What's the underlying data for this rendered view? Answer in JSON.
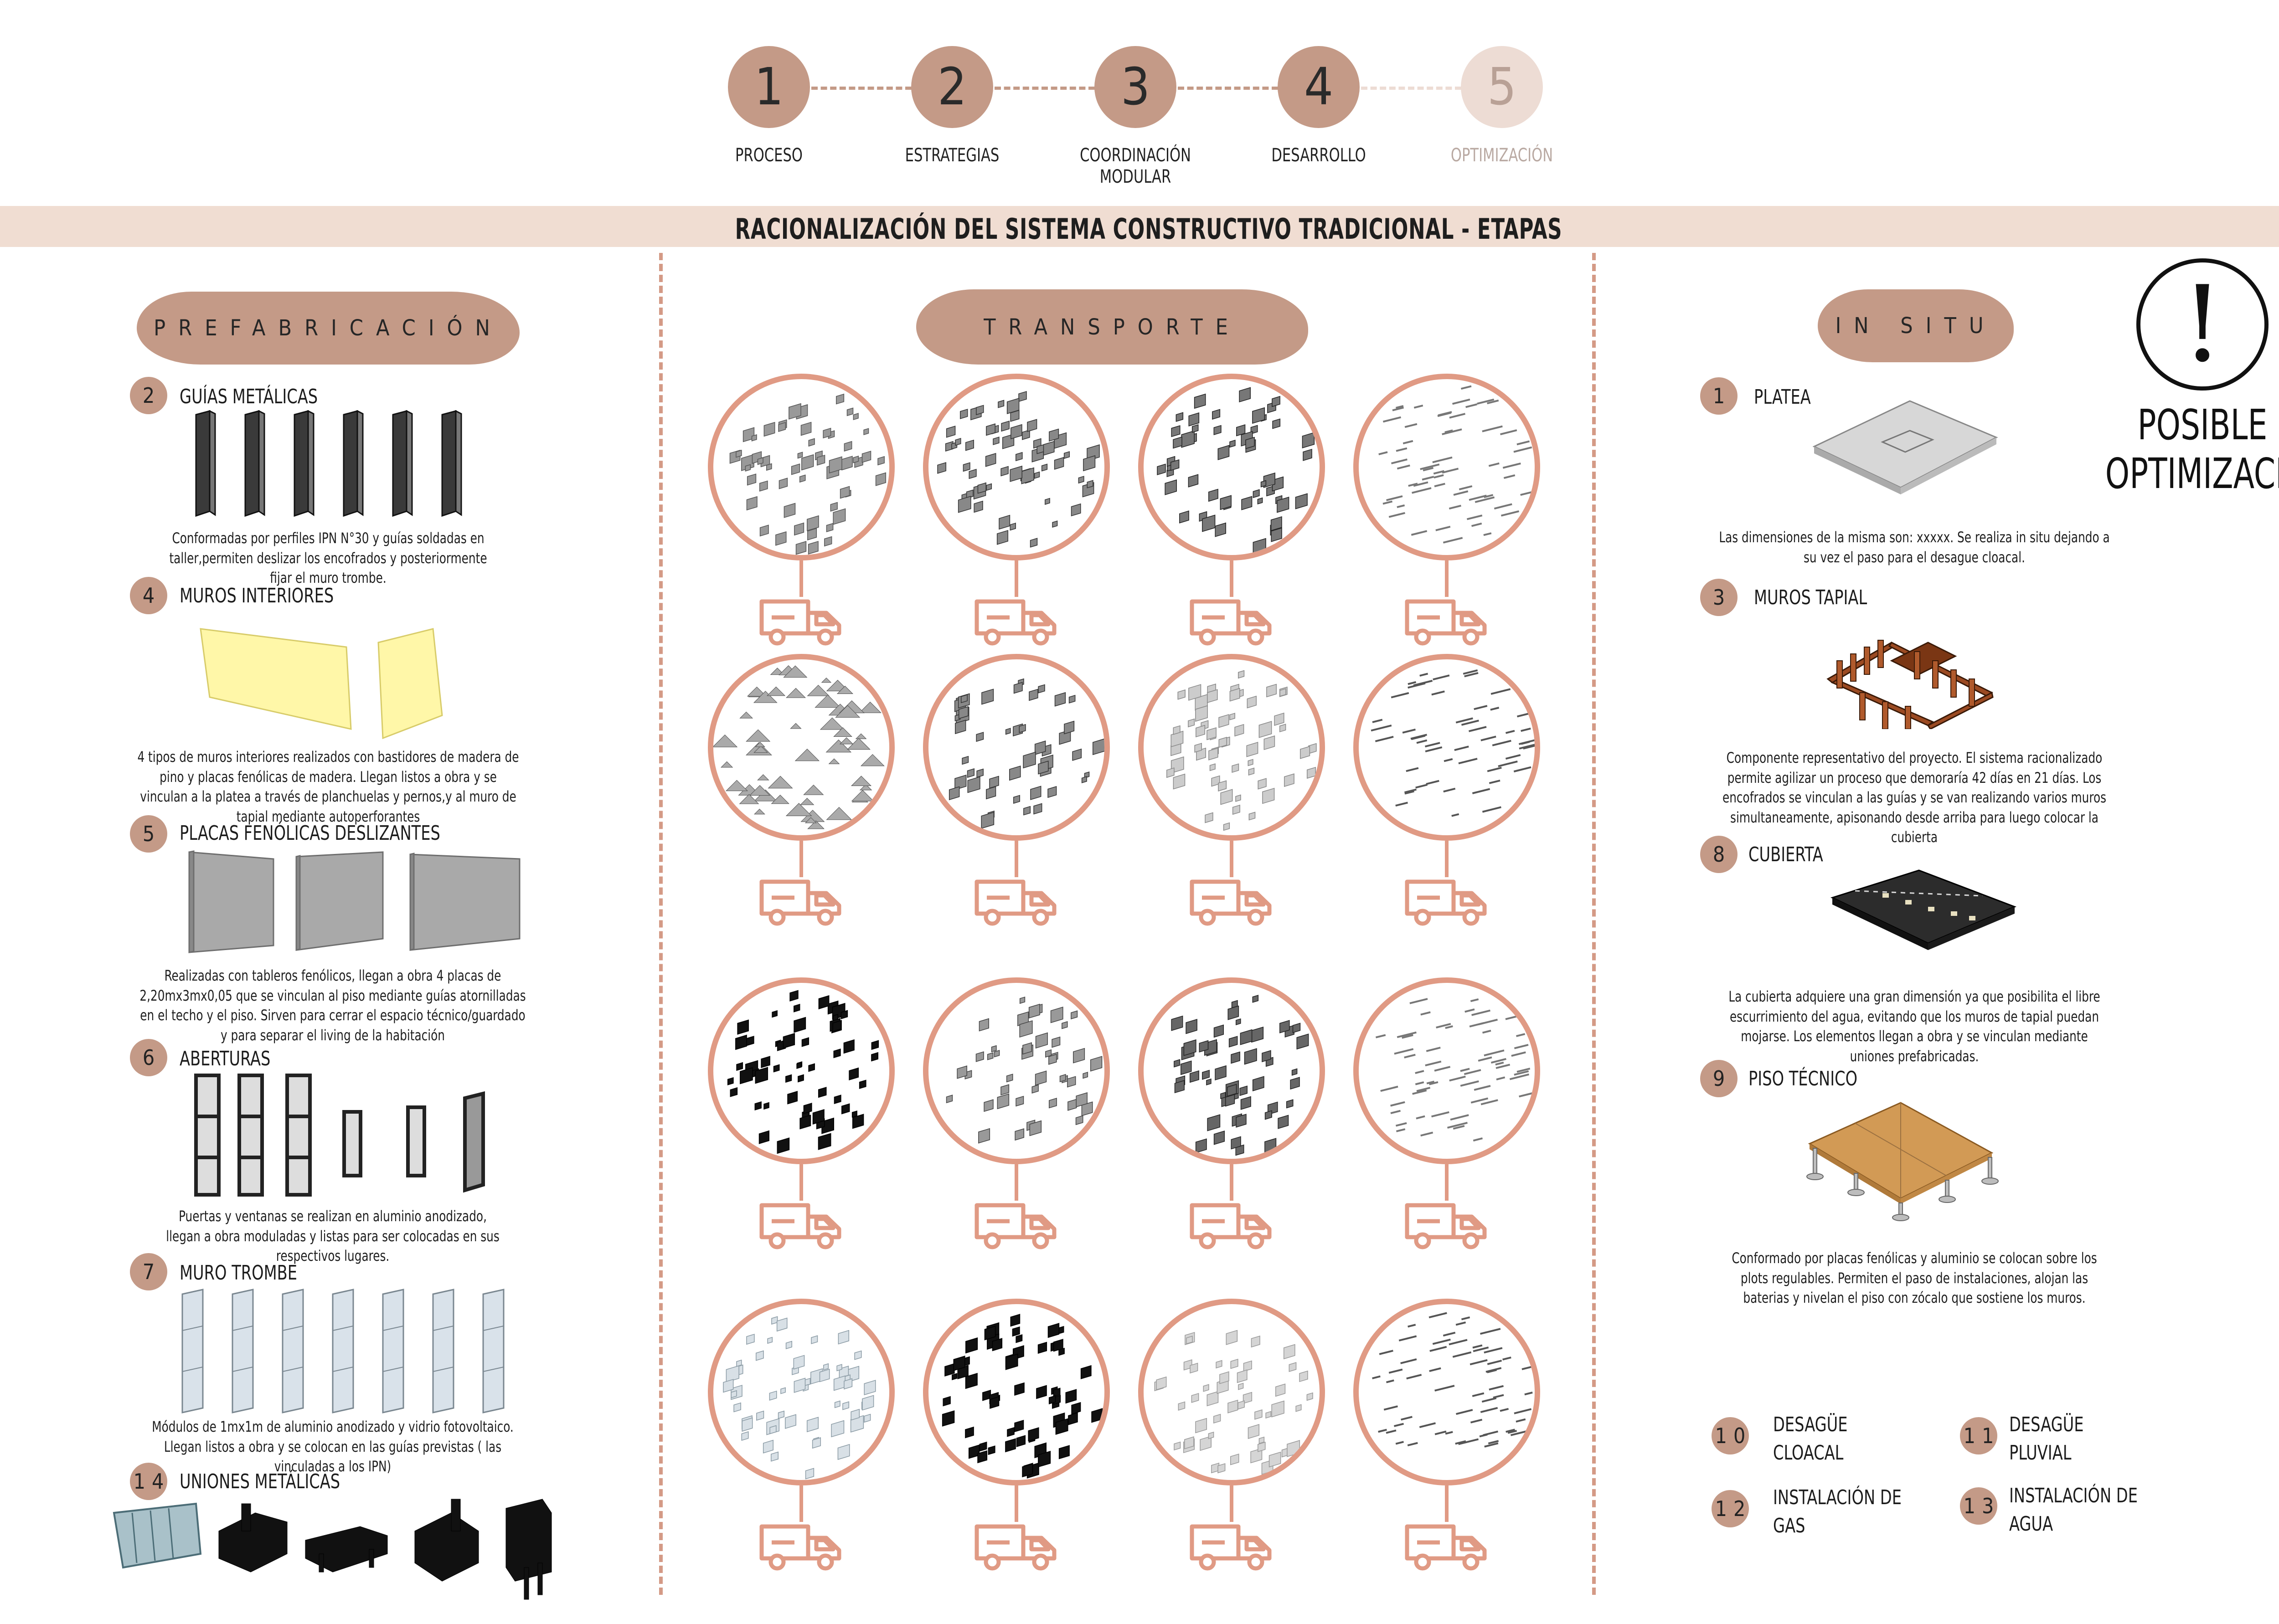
{
  "header": {
    "steps": [
      {
        "number": "1",
        "label": "PROCESO"
      },
      {
        "number": "2",
        "label": "ESTRATEGIAS"
      },
      {
        "number": "3",
        "label": "COORDINACIÓN MODULAR"
      },
      {
        "number": "4",
        "label": "DESARROLLO"
      },
      {
        "number": "5",
        "label": "OPTIMIZACIÓN"
      }
    ],
    "title": "RACIONALIZACIÓN DEL SISTEMA CONSTRUCTIVO TRADICIONAL - ETAPAS"
  },
  "prefabricacion": {
    "title": "PREFABRICACIÓN",
    "items": [
      {
        "number": "2",
        "title": "GUÍAS METÁLICAS",
        "desc": "Conformadas por perfiles IPN N°30 y guías soldadas en taller,permiten deslizar los encofrados y posteriormente fijar el muro trombe."
      },
      {
        "number": "4",
        "title": "MUROS INTERIORES",
        "desc": "4 tipos de muros interiores realizados con bastidores de madera de pino y placas fenólicas de madera. Llegan listos a obra y se vinculan a la platea a través de planchuelas y pernos,y al muro de tapial mediante autoperforantes"
      },
      {
        "number": "5",
        "title": "PLACAS FENÓLICAS DESLIZANTES",
        "desc": "Realizadas con tableros fenólicos, llegan a obra 4 placas de 2,20mx3mx0,05 que se vinculan al piso mediante guías atornilladas en el techo y el piso. Sirven para cerrar el espacio técnico/guardado y para separar el living de la habitación"
      },
      {
        "number": "6",
        "title": "ABERTURAS",
        "desc": "Puertas y ventanas se realizan en aluminio anodizado, llegan a obra moduladas y listas para ser colocadas en sus respectivos lugares."
      },
      {
        "number": "7",
        "title": "MURO TROMBE",
        "desc": "Módulos de 1mx1m de aluminio anodizado y vidrio fotovoltaico. Llegan listos a obra y se colocan en las guías previstas ( las vinculadas a  los IPN)"
      },
      {
        "number": "14",
        "title": "UNIONES METÁLICAS",
        "desc": ""
      }
    ]
  },
  "transporte": {
    "title": "TRANSPORTE"
  },
  "in_situ": {
    "title": "IN SITU",
    "items": [
      {
        "number": "1",
        "title": "PLATEA",
        "desc": "Las dimensiones de la misma son: xxxxx. Se realiza in situ dejando a su vez el paso para el desague cloacal."
      },
      {
        "number": "3",
        "title": "MUROS TAPIAL",
        "desc": "Componente representativo del proyecto. El sistema racionalizado permite agilizar un proceso que demoraría 42 días en 21 días. Los encofrados se vinculan a las guías y se van realizando varios muros simultaneamente, apisonando desde arriba para luego colocar la cubierta"
      },
      {
        "number": "8",
        "title": "CUBIERTA",
        "desc": "La cubierta adquiere una gran dimensión ya que posibilita el libre escurrimiento del agua, evitando que los muros de tapial puedan mojarse. Los elementos llegan a obra y se vinculan mediante uniones prefabricadas."
      },
      {
        "number": "9",
        "title": "PISO TÉCNICO",
        "desc": "Conformado por placas fenólicas y aluminio se colocan sobre los plots regulables. Permiten el paso de instalaciones, alojan las baterias y nivelan el piso con zócalo que sostiene los muros."
      }
    ],
    "extras": [
      {
        "number": "10",
        "line1": "DESAGÜE",
        "line2": "CLOACAL"
      },
      {
        "number": "11",
        "line1": "DESAGÜE",
        "line2": "PLUVIAL"
      },
      {
        "number": "12",
        "line1": "INSTALACIÓN DE",
        "line2": "GAS"
      },
      {
        "number": "13",
        "line1": "INSTALACIÓN DE",
        "line2": "AGUA"
      }
    ]
  },
  "warning": {
    "symbol": "!",
    "line1": "POSIBLE",
    "line2": "OPTIMIZACIÓN"
  },
  "colors": {
    "accent": "#c49a87",
    "accent_light": "#eddcd4",
    "banner": "#f0ddd2",
    "transport": "#e09a84"
  }
}
